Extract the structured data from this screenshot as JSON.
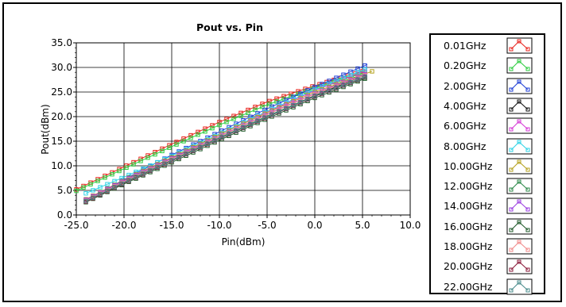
{
  "chart_data": {
    "type": "line",
    "title": "Pout vs. Pin",
    "xlabel": "Pin(dBm)",
    "ylabel": "Pout(dBm)",
    "xlim": [
      -25.0,
      10.0
    ],
    "ylim": [
      0.0,
      35.0
    ],
    "x_ticks": [
      -25.0,
      -20.0,
      -15.0,
      -10.0,
      -5.0,
      0.0,
      5.0,
      10.0
    ],
    "y_ticks": [
      0.0,
      5.0,
      10.0,
      15.0,
      20.0,
      25.0,
      30.0,
      35.0
    ],
    "x_tick_labels": [
      "-25.0",
      "-20.0",
      "-15.0",
      "-10.0",
      "-5.0",
      "0.0",
      "5.0",
      "10.0"
    ],
    "y_tick_labels": [
      "0.0",
      "5.0",
      "10.0",
      "15.0",
      "20.0",
      "25.0",
      "30.0",
      "35.0"
    ],
    "grid": true,
    "legend_position": "right",
    "series": [
      {
        "name": "0.01GHz",
        "color": "#e8251f",
        "x": [
          -25.0,
          -20.0,
          -15.0,
          -10.0,
          -5.0,
          0.0,
          5.5
        ],
        "y": [
          5.2,
          9.8,
          14.4,
          18.9,
          23.0,
          26.3,
          29.5
        ]
      },
      {
        "name": "0.20GHz",
        "color": "#2ecc40",
        "x": [
          -25.0,
          -20.0,
          -15.0,
          -10.0,
          -5.0,
          0.0,
          5.5
        ],
        "y": [
          4.9,
          9.4,
          13.9,
          18.3,
          22.4,
          25.8,
          29.1
        ]
      },
      {
        "name": "2.00GHz",
        "color": "#1f3fd6",
        "x": [
          -24.0,
          -20.0,
          -15.0,
          -10.0,
          -5.0,
          0.0,
          5.5
        ],
        "y": [
          3.0,
          7.2,
          12.2,
          16.9,
          21.6,
          26.0,
          30.6
        ]
      },
      {
        "name": "4.00GHz",
        "color": "#111111",
        "x": [
          -24.0,
          -20.0,
          -15.0,
          -10.0,
          -5.0,
          0.0,
          5.5
        ],
        "y": [
          2.8,
          6.5,
          11.0,
          15.6,
          20.0,
          24.3,
          28.6
        ]
      },
      {
        "name": "6.00GHz",
        "color": "#d63ad6",
        "x": [
          -24.0,
          -20.0,
          -15.0,
          -10.0,
          -5.0,
          0.0,
          5.5
        ],
        "y": [
          3.0,
          6.9,
          11.6,
          16.3,
          20.9,
          25.3,
          29.5
        ]
      },
      {
        "name": "8.00GHz",
        "color": "#2fd3e6",
        "x": [
          -24.0,
          -20.0,
          -15.0,
          -10.0,
          -5.0,
          0.0,
          5.5
        ],
        "y": [
          4.4,
          7.7,
          12.0,
          16.5,
          21.1,
          25.5,
          29.8
        ]
      },
      {
        "name": "10.00GHz",
        "color": "#b5a21f",
        "x": [
          -24.0,
          -20.0,
          -15.0,
          -10.0,
          -5.0,
          0.0,
          6.0
        ],
        "y": [
          3.2,
          7.1,
          11.7,
          16.3,
          20.8,
          25.0,
          29.2
        ]
      },
      {
        "name": "12.00GHz",
        "color": "#2d8a4a",
        "x": [
          -24.0,
          -20.0,
          -15.0,
          -10.0,
          -5.0,
          0.0,
          5.5
        ],
        "y": [
          2.9,
          6.7,
          11.2,
          15.7,
          20.1,
          24.2,
          28.1
        ]
      },
      {
        "name": "14.00GHz",
        "color": "#9a3de0",
        "x": [
          -24.0,
          -20.0,
          -15.0,
          -10.0,
          -5.0,
          0.0,
          5.5
        ],
        "y": [
          3.1,
          7.0,
          11.5,
          16.0,
          20.5,
          24.7,
          28.8
        ]
      },
      {
        "name": "16.00GHz",
        "color": "#1f5a2a",
        "x": [
          -24.0,
          -20.0,
          -15.0,
          -10.0,
          -5.0,
          0.0,
          5.5
        ],
        "y": [
          2.6,
          6.3,
          10.7,
          15.2,
          19.6,
          23.8,
          27.9
        ]
      },
      {
        "name": "18.00GHz",
        "color": "#f08a8a",
        "x": [
          -24.0,
          -20.0,
          -15.0,
          -10.0,
          -5.0,
          0.0,
          5.5
        ],
        "y": [
          2.9,
          6.8,
          11.3,
          15.9,
          20.4,
          24.6,
          28.6
        ]
      },
      {
        "name": "20.00GHz",
        "color": "#8b1a3a",
        "x": [
          -24.0,
          -20.0,
          -15.0,
          -10.0,
          -5.0,
          0.0,
          5.5
        ],
        "y": [
          2.7,
          6.5,
          11.0,
          15.5,
          19.9,
          24.1,
          28.2
        ]
      },
      {
        "name": "22.00GHz",
        "color": "#4a8c8c",
        "x": [
          -24.0,
          -20.0,
          -15.0,
          -10.0,
          -5.0,
          0.0,
          5.5
        ],
        "y": [
          2.8,
          6.6,
          11.1,
          15.6,
          20.0,
          24.2,
          28.3
        ]
      }
    ]
  }
}
